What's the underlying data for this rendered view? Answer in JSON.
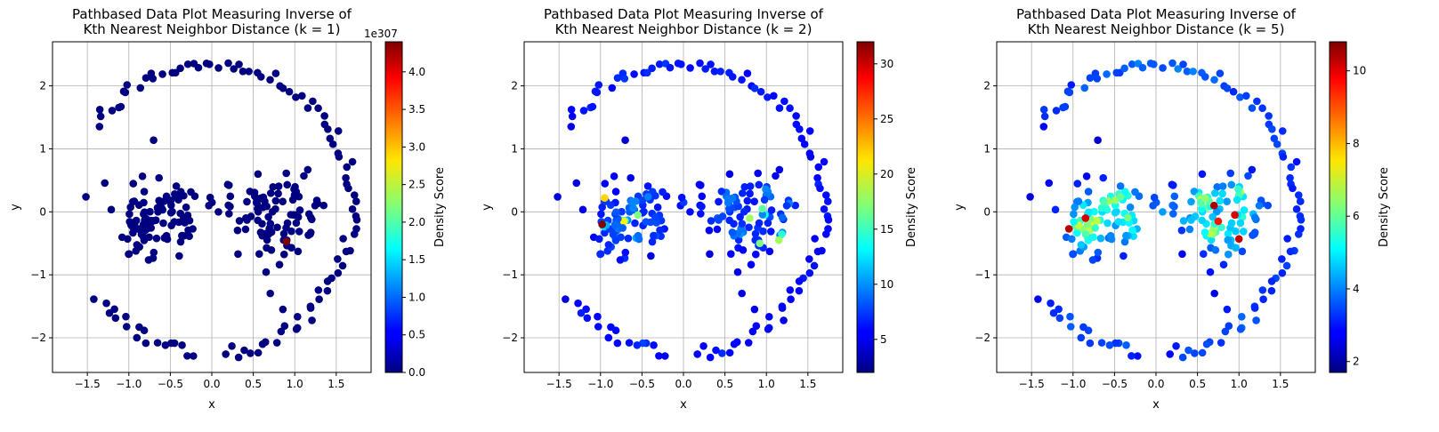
{
  "chart_data": [
    {
      "type": "scatter",
      "title_line1": "Pathbased Data Plot Measuring Inverse of",
      "title_line2": "Kth Nearest Neighbor Distance (k = 1)",
      "xlabel": "x",
      "ylabel": "y",
      "xlim": [
        -1.92,
        1.92
      ],
      "ylim": [
        -2.55,
        2.7
      ],
      "xticks": [
        -1.5,
        -1.0,
        -0.5,
        0.0,
        0.5,
        1.0,
        1.5
      ],
      "xtick_labels": [
        "−1.5",
        "−1.0",
        "−0.5",
        "0.0",
        "0.5",
        "1.0",
        "1.5"
      ],
      "yticks": [
        -2,
        -1,
        0,
        1,
        2
      ],
      "ytick_labels": [
        "−2",
        "−1",
        "0",
        "1",
        "2"
      ],
      "grid": true,
      "colormap": "jet",
      "colorbar": {
        "label": "Density Score",
        "range": [
          0,
          4.4
        ],
        "ticks": [
          0.0,
          0.5,
          1.0,
          1.5,
          2.0,
          2.5,
          3.0,
          3.5,
          4.0
        ],
        "tick_labels": [
          "0.0",
          "0.5",
          "1.0",
          "1.5",
          "2.0",
          "2.5",
          "3.0",
          "3.5",
          "4.0"
        ],
        "offset_text": "1e307"
      },
      "highlight_points": [
        [
          0.9,
          -0.47,
          4.4
        ]
      ]
    },
    {
      "type": "scatter",
      "title_line1": "Pathbased Data Plot Measuring Inverse of",
      "title_line2": "Kth Nearest Neighbor Distance (k = 2)",
      "xlabel": "x",
      "ylabel": "y",
      "xlim": [
        -1.92,
        1.92
      ],
      "ylim": [
        -2.55,
        2.7
      ],
      "xticks": [
        -1.5,
        -1.0,
        -0.5,
        0.0,
        0.5,
        1.0,
        1.5
      ],
      "xtick_labels": [
        "−1.5",
        "−1.0",
        "−0.5",
        "0.0",
        "0.5",
        "1.0",
        "1.5"
      ],
      "yticks": [
        -2,
        -1,
        0,
        1,
        2
      ],
      "ytick_labels": [
        "−2",
        "−1",
        "0",
        "1",
        "2"
      ],
      "grid": true,
      "colormap": "jet",
      "colorbar": {
        "label": "Density Score",
        "range": [
          2,
          32
        ],
        "ticks": [
          5,
          10,
          15,
          20,
          25,
          30
        ],
        "tick_labels": [
          "5",
          "10",
          "15",
          "20",
          "25",
          "30"
        ],
        "offset_text": ""
      },
      "highlight_points": [
        [
          -0.98,
          -0.2,
          32
        ],
        [
          -0.95,
          0.22,
          22
        ],
        [
          -0.55,
          -0.05,
          17
        ],
        [
          0.8,
          -0.1,
          18
        ],
        [
          0.95,
          0.05,
          16
        ],
        [
          1.15,
          -0.45,
          18
        ],
        [
          0.92,
          -0.5,
          17
        ]
      ]
    },
    {
      "type": "scatter",
      "title_line1": "Pathbased Data Plot Measuring Inverse of",
      "title_line2": "Kth Nearest Neighbor Distance (k = 5)",
      "xlabel": "x",
      "ylabel": "y",
      "xlim": [
        -1.92,
        1.92
      ],
      "ylim": [
        -2.55,
        2.7
      ],
      "xticks": [
        -1.5,
        -1.0,
        -0.5,
        0.0,
        0.5,
        1.0,
        1.5
      ],
      "xtick_labels": [
        "−1.5",
        "−1.0",
        "−0.5",
        "0.0",
        "0.5",
        "1.0",
        "1.5"
      ],
      "yticks": [
        -2,
        -1,
        0,
        1,
        2
      ],
      "ytick_labels": [
        "−2",
        "−1",
        "0",
        "1",
        "2"
      ],
      "grid": true,
      "colormap": "jet",
      "colorbar": {
        "label": "Density Score",
        "range": [
          1.7,
          10.8
        ],
        "ticks": [
          2,
          4,
          6,
          8,
          10
        ],
        "tick_labels": [
          "2",
          "4",
          "6",
          "8",
          "10"
        ],
        "offset_text": ""
      },
      "highlight_points": [
        [
          -1.05,
          -0.27,
          10.3
        ],
        [
          -0.85,
          -0.1,
          10.0
        ],
        [
          0.7,
          0.1,
          10.4
        ],
        [
          0.95,
          -0.05,
          10.0
        ],
        [
          1.0,
          -0.43,
          10.2
        ],
        [
          0.75,
          -0.15,
          9.5
        ]
      ]
    }
  ]
}
